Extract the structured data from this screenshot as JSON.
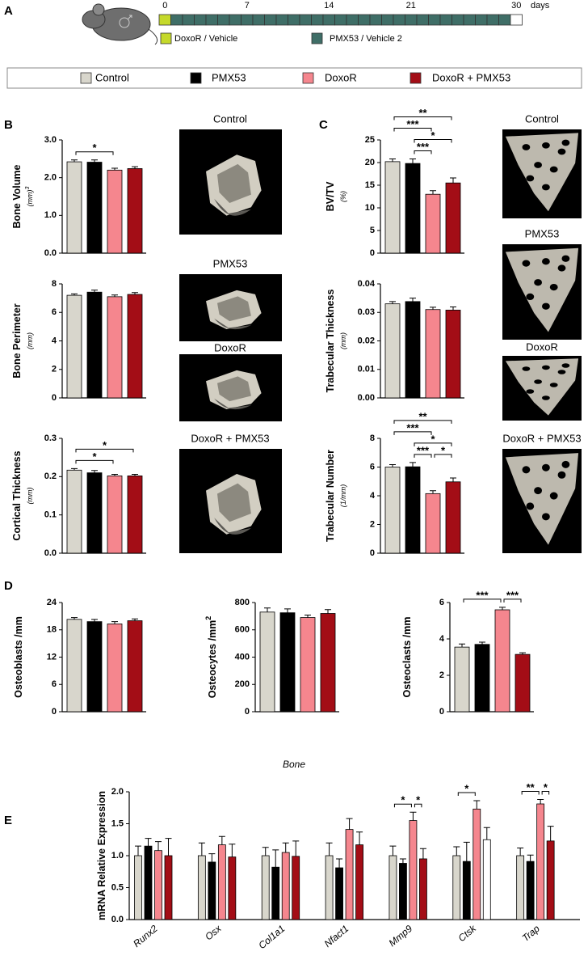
{
  "panel_labels": [
    "A",
    "B",
    "C",
    "D",
    "E"
  ],
  "timeline": {
    "ticks": [
      0,
      7,
      14,
      21,
      30
    ],
    "unit": "days",
    "legend": [
      {
        "label": "DoxoR / Vehicle",
        "color": "#c5d92b"
      },
      {
        "label": "PMX53 / Vehicle 2",
        "color": "#3f6e67"
      }
    ]
  },
  "legend": [
    {
      "label": "Control",
      "color": "#d8d6cc"
    },
    {
      "label": "PMX53",
      "color": "#000000"
    },
    {
      "label": "DoxoR",
      "color": "#f5868e"
    },
    {
      "label": "DoxoR + PMX53",
      "color": "#a30d16"
    }
  ],
  "images": {
    "B": [
      "Control",
      "PMX53",
      "DoxoR",
      "DoxoR + PMX53"
    ],
    "C": [
      "Control",
      "PMX53",
      "DoxoR",
      "DoxoR + PMX53"
    ]
  },
  "chart_data": [
    {
      "type": "bar",
      "y_label": "Bone Volume",
      "y_unit": "(mm)",
      "y_unit_sup": "3",
      "values": [
        2.42,
        2.41,
        2.2,
        2.24
      ],
      "errors": [
        0.05,
        0.06,
        0.05,
        0.05
      ],
      "ylim": [
        0,
        3
      ],
      "yticks": [
        {
          "value": 0,
          "label": "0.0"
        },
        {
          "value": 1,
          "label": "1.0"
        },
        {
          "value": 2,
          "label": "2.0"
        },
        {
          "value": 3,
          "label": "3.0"
        }
      ],
      "significance": [
        {
          "from": 0,
          "to": 2,
          "label": "*"
        }
      ]
    },
    {
      "type": "bar",
      "y_label": "Bone Perimeter",
      "y_unit": "(mm)",
      "values": [
        7.2,
        7.42,
        7.1,
        7.26
      ],
      "errors": [
        0.1,
        0.14,
        0.12,
        0.13
      ],
      "ylim": [
        0,
        8
      ],
      "yticks": [
        0,
        2,
        4,
        6,
        8
      ]
    },
    {
      "type": "bar",
      "y_label": "Cortical Thickness",
      "y_unit": "(mm)",
      "values": [
        0.217,
        0.21,
        0.202,
        0.202
      ],
      "errors": [
        0.004,
        0.006,
        0.004,
        0.004
      ],
      "ylim": [
        0,
        0.3
      ],
      "yticks": [
        {
          "value": 0,
          "label": "0.0"
        },
        0.1,
        0.2,
        0.3
      ],
      "significance": [
        {
          "from": 0,
          "to": 2,
          "label": "*"
        },
        {
          "from": 0,
          "to": 3,
          "label": "*"
        }
      ]
    },
    {
      "type": "bar",
      "y_label": "BV/TV",
      "y_unit": "(%)",
      "values": [
        20.2,
        19.8,
        13.0,
        15.5
      ],
      "errors": [
        0.6,
        1.0,
        0.8,
        1.1
      ],
      "ylim": [
        0,
        25
      ],
      "yticks": [
        0,
        5,
        10,
        15,
        20,
        25
      ],
      "significance": [
        {
          "from": 1,
          "to": 2,
          "label": "***"
        },
        {
          "from": 1,
          "to": 3,
          "label": "*"
        },
        {
          "from": 0,
          "to": 2,
          "label": "***"
        },
        {
          "from": 0,
          "to": 3,
          "label": "**"
        }
      ]
    },
    {
      "type": "bar",
      "y_label": "Trabecular Thickness",
      "y_unit": "(mm)",
      "values": [
        0.033,
        0.0338,
        0.031,
        0.0308
      ],
      "errors": [
        0.0008,
        0.0012,
        0.0008,
        0.0011
      ],
      "ylim": [
        0,
        0.04
      ],
      "yticks": [
        {
          "value": 0,
          "label": "0.00"
        },
        0.01,
        0.02,
        0.03,
        0.04
      ]
    },
    {
      "type": "bar",
      "y_label": "Trabecular Number",
      "y_unit": "(1/mm)",
      "values": [
        6.0,
        6.02,
        4.15,
        4.97
      ],
      "errors": [
        0.17,
        0.3,
        0.2,
        0.27
      ],
      "ylim": [
        0,
        8
      ],
      "yticks": [
        0,
        2,
        4,
        6,
        8
      ],
      "significance": [
        {
          "from": 1,
          "to": 2,
          "label": "***"
        },
        {
          "from": 2,
          "to": 3,
          "label": "*"
        },
        {
          "from": 1,
          "to": 3,
          "label": "*"
        },
        {
          "from": 0,
          "to": 2,
          "label": "***"
        },
        {
          "from": 0,
          "to": 3,
          "label": "**"
        }
      ]
    },
    {
      "type": "bar",
      "y_label": "Osteoblasts /mm",
      "values": [
        20.3,
        19.8,
        19.3,
        20.0
      ],
      "errors": [
        0.4,
        0.5,
        0.5,
        0.4
      ],
      "ylim": [
        0,
        24
      ],
      "yticks": [
        0,
        6,
        12,
        18,
        24
      ]
    },
    {
      "type": "bar",
      "y_label": "Osteocytes /mm",
      "y_label_sup": "2",
      "values": [
        730,
        725,
        690,
        720
      ],
      "errors": [
        30,
        28,
        18,
        28
      ],
      "ylim": [
        0,
        800
      ],
      "yticks": [
        0,
        200,
        400,
        600,
        800
      ]
    },
    {
      "type": "bar",
      "y_label": "Osteoclasts /mm",
      "values": [
        3.55,
        3.7,
        5.6,
        3.15
      ],
      "errors": [
        0.17,
        0.12,
        0.14,
        0.09
      ],
      "ylim": [
        0,
        6
      ],
      "yticks": [
        0,
        2,
        4,
        6
      ],
      "significance": [
        {
          "from": 0,
          "to": 2,
          "label": "***"
        },
        {
          "from": 2,
          "to": 3,
          "label": "***"
        }
      ]
    },
    {
      "type": "grouped_bar",
      "title": "Bone",
      "y_label": "mRNA Relative Expression",
      "categories": [
        "Runx2",
        "Osx",
        "Col1a1",
        "Nfact1",
        "Mmp9",
        "Ctsk",
        "Trap"
      ],
      "series": [
        {
          "values": [
            1.0,
            1.0,
            1.0,
            1.0,
            1.0,
            1.0,
            1.0
          ],
          "errors": [
            0.15,
            0.2,
            0.13,
            0.2,
            0.15,
            0.14,
            0.12
          ]
        },
        {
          "values": [
            1.15,
            0.9,
            0.82,
            0.81,
            0.88,
            0.91,
            0.91
          ],
          "errors": [
            0.12,
            0.13,
            0.27,
            0.14,
            0.07,
            0.3,
            0.1
          ]
        },
        {
          "values": [
            1.08,
            1.17,
            1.05,
            1.41,
            1.55,
            1.73,
            1.81
          ],
          "errors": [
            0.14,
            0.13,
            0.15,
            0.17,
            0.13,
            0.13,
            0.07
          ]
        },
        {
          "values": [
            1.0,
            0.98,
            0.99,
            1.17,
            0.95,
            1.25,
            1.23
          ],
          "errors": [
            0.27,
            0.2,
            0.24,
            0.2,
            0.16,
            0.19,
            0.23
          ],
          "colors": [
            "#a30d16",
            "#a30d16",
            "#a30d16",
            "#a30d16",
            "#a30d16",
            "#ffffff",
            "#a30d16"
          ]
        }
      ],
      "ylim": [
        0,
        2
      ],
      "yticks": [
        {
          "value": 0,
          "label": "0.0"
        },
        0.5,
        {
          "value": 1,
          "label": "1.0"
        },
        1.5,
        {
          "value": 2,
          "label": "2.0"
        }
      ],
      "significance": [
        {
          "category": 4,
          "from": 0,
          "to": 2,
          "label": "*"
        },
        {
          "category": 4,
          "from": 2,
          "to": 3,
          "label": "*"
        },
        {
          "category": 5,
          "from": 0,
          "to": 2,
          "label": "*"
        },
        {
          "category": 6,
          "from": 0,
          "to": 2,
          "label": "**"
        },
        {
          "category": 6,
          "from": 2,
          "to": 3,
          "label": "*"
        }
      ]
    }
  ]
}
